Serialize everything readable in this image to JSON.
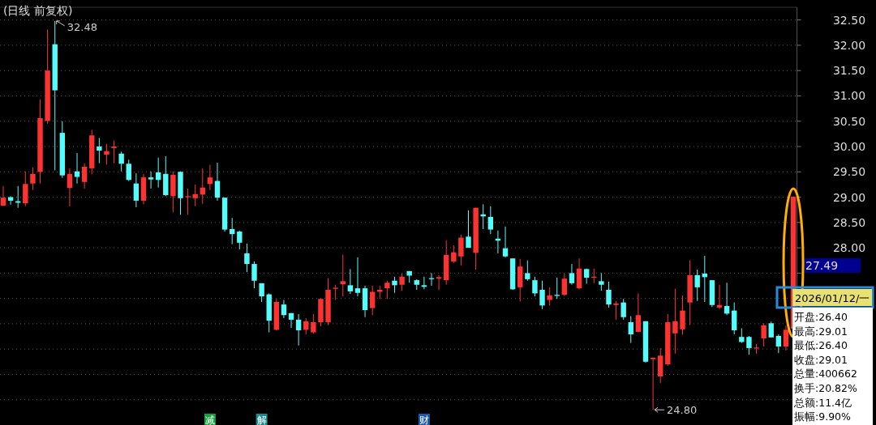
{
  "chart_data": {
    "type": "candlestick",
    "title": "(日线 前复权)",
    "categories": [
      null,
      null,
      null,
      null,
      null,
      null,
      null,
      null,
      null,
      null,
      null,
      null,
      null,
      null,
      null,
      null,
      null,
      null,
      null,
      null,
      null,
      null,
      null,
      null,
      null,
      null,
      null,
      null,
      null,
      null,
      null,
      null,
      null,
      null,
      null,
      null,
      null,
      null,
      null,
      null,
      null,
      null,
      null,
      null,
      null,
      null,
      null,
      null,
      null,
      null,
      null,
      null,
      null,
      null,
      null,
      null,
      null,
      null,
      null,
      null,
      null,
      null,
      null,
      null,
      null,
      null,
      null,
      null,
      null,
      null,
      null,
      null,
      null,
      null,
      null,
      null,
      null,
      null,
      null,
      null,
      null,
      null,
      null,
      null,
      null,
      null,
      null,
      null,
      null,
      null,
      null,
      null,
      null,
      null,
      null,
      null,
      null,
      null,
      null,
      null,
      null,
      null,
      null,
      null,
      null,
      null,
      null,
      null
    ],
    "ohlc": [
      [
        28.83,
        29.22,
        28.83,
        28.99
      ],
      [
        29.0,
        29.02,
        28.85,
        28.93
      ],
      [
        28.92,
        29.22,
        28.79,
        28.89
      ],
      [
        28.88,
        29.51,
        28.82,
        29.26
      ],
      [
        29.27,
        29.59,
        29.14,
        29.46
      ],
      [
        29.5,
        30.93,
        29.27,
        30.56
      ],
      [
        30.51,
        32.31,
        30.45,
        31.5
      ],
      [
        32.02,
        32.48,
        29.53,
        31.11
      ],
      [
        30.27,
        30.5,
        29.38,
        29.43
      ],
      [
        29.18,
        29.57,
        28.82,
        29.46
      ],
      [
        29.51,
        29.87,
        29.27,
        29.4
      ],
      [
        29.3,
        29.67,
        29.17,
        29.6
      ],
      [
        29.57,
        30.33,
        29.45,
        30.22
      ],
      [
        30.0,
        30.17,
        29.67,
        29.92
      ],
      [
        29.84,
        30.05,
        29.64,
        29.91
      ],
      [
        29.97,
        30.12,
        29.67,
        30.0
      ],
      [
        29.86,
        29.9,
        29.51,
        29.66
      ],
      [
        29.66,
        29.74,
        29.32,
        29.34
      ],
      [
        29.27,
        29.47,
        28.8,
        28.93
      ],
      [
        28.93,
        29.46,
        28.86,
        29.39
      ],
      [
        29.39,
        29.51,
        29.17,
        29.35
      ],
      [
        29.49,
        29.78,
        29.19,
        29.34
      ],
      [
        29.46,
        29.81,
        29.02,
        29.04
      ],
      [
        29.02,
        29.51,
        28.7,
        29.44
      ],
      [
        29.5,
        29.51,
        28.65,
        28.98
      ],
      [
        29.0,
        29.17,
        28.65,
        29.02
      ],
      [
        28.98,
        29.25,
        28.82,
        29.06
      ],
      [
        29.05,
        29.57,
        28.87,
        29.19
      ],
      [
        29.26,
        29.64,
        29.14,
        29.39
      ],
      [
        29.32,
        29.68,
        28.93,
        28.99
      ],
      [
        28.99,
        28.99,
        28.32,
        28.36
      ],
      [
        28.37,
        28.59,
        28.07,
        28.27
      ],
      [
        28.32,
        28.34,
        27.97,
        28.1
      ],
      [
        27.89,
        28.08,
        27.52,
        27.68
      ],
      [
        27.68,
        27.73,
        27.2,
        27.35
      ],
      [
        27.3,
        27.3,
        26.93,
        27.04
      ],
      [
        27.08,
        27.1,
        26.33,
        26.56
      ],
      [
        26.38,
        26.99,
        26.37,
        26.93
      ],
      [
        26.88,
        26.97,
        26.61,
        26.67
      ],
      [
        26.71,
        26.71,
        26.42,
        26.58
      ],
      [
        26.58,
        26.69,
        26.07,
        26.37
      ],
      [
        26.38,
        26.61,
        26.29,
        26.55
      ],
      [
        26.33,
        26.69,
        26.3,
        26.53
      ],
      [
        26.53,
        26.99,
        26.45,
        26.99
      ],
      [
        26.53,
        27.4,
        26.47,
        27.17
      ],
      [
        27.19,
        27.27,
        26.97,
        27.21
      ],
      [
        27.28,
        27.86,
        27.04,
        27.34
      ],
      [
        27.26,
        27.58,
        27.09,
        27.14
      ],
      [
        27.2,
        27.81,
        27.04,
        27.11
      ],
      [
        27.2,
        27.25,
        26.63,
        26.77
      ],
      [
        26.81,
        27.25,
        26.67,
        27.13
      ],
      [
        27.13,
        27.25,
        26.99,
        27.17
      ],
      [
        27.2,
        27.35,
        26.99,
        27.31
      ],
      [
        27.35,
        27.43,
        27.11,
        27.26
      ],
      [
        27.27,
        27.49,
        27.15,
        27.43
      ],
      [
        27.54,
        27.54,
        27.31,
        27.45
      ],
      [
        27.36,
        27.38,
        27.17,
        27.27
      ],
      [
        27.26,
        27.43,
        27.18,
        27.23
      ],
      [
        27.4,
        27.5,
        27.25,
        27.38
      ],
      [
        27.39,
        27.46,
        27.17,
        27.42
      ],
      [
        27.36,
        28.15,
        27.27,
        27.86
      ],
      [
        27.73,
        28.05,
        27.7,
        27.91
      ],
      [
        27.83,
        28.26,
        27.65,
        28.2
      ],
      [
        28.22,
        28.74,
        28.0,
        28.0
      ],
      [
        27.9,
        28.79,
        27.57,
        28.79
      ],
      [
        28.66,
        28.86,
        28.37,
        28.62
      ],
      [
        28.61,
        28.82,
        28.27,
        28.36
      ],
      [
        28.18,
        28.34,
        27.89,
        28.14
      ],
      [
        27.99,
        28.42,
        27.81,
        27.83
      ],
      [
        27.79,
        27.79,
        27.17,
        27.18
      ],
      [
        27.22,
        27.78,
        26.94,
        27.63
      ],
      [
        27.5,
        27.75,
        27.35,
        27.38
      ],
      [
        27.36,
        27.43,
        27.04,
        27.1
      ],
      [
        27.17,
        27.35,
        26.79,
        26.86
      ],
      [
        26.97,
        27.22,
        26.86,
        27.06
      ],
      [
        27.07,
        27.41,
        26.99,
        27.05
      ],
      [
        27.07,
        27.49,
        27.05,
        27.39
      ],
      [
        27.5,
        27.68,
        27.27,
        27.3
      ],
      [
        27.2,
        27.79,
        27.18,
        27.59
      ],
      [
        27.58,
        27.59,
        27.29,
        27.41
      ],
      [
        27.41,
        27.59,
        27.3,
        27.43
      ],
      [
        27.34,
        27.5,
        27.15,
        27.27
      ],
      [
        27.17,
        27.33,
        26.82,
        26.88
      ],
      [
        26.87,
        26.95,
        26.58,
        26.9
      ],
      [
        26.92,
        26.99,
        26.58,
        26.63
      ],
      [
        26.53,
        26.65,
        26.12,
        26.29
      ],
      [
        26.34,
        27.1,
        26.33,
        26.67
      ],
      [
        26.55,
        26.55,
        25.73,
        25.75
      ],
      [
        25.8,
        25.83,
        24.8,
        25.83
      ],
      [
        25.46,
        26.02,
        25.33,
        25.87
      ],
      [
        25.7,
        26.69,
        25.67,
        26.53
      ],
      [
        26.31,
        27.19,
        25.91,
        26.55
      ],
      [
        26.39,
        27.06,
        26.28,
        26.76
      ],
      [
        26.92,
        27.75,
        26.47,
        27.46
      ],
      [
        27.46,
        27.57,
        26.95,
        27.22
      ],
      [
        27.49,
        27.84,
        26.93,
        27.42
      ],
      [
        27.36,
        27.36,
        26.83,
        26.87
      ],
      [
        26.82,
        27.27,
        26.79,
        26.87
      ],
      [
        26.85,
        27.31,
        26.67,
        26.7
      ],
      [
        26.76,
        26.92,
        26.29,
        26.37
      ],
      [
        26.24,
        26.41,
        26.12,
        26.14
      ],
      [
        26.24,
        26.26,
        25.89,
        26.02
      ],
      [
        26.02,
        26.1,
        25.91,
        26.03
      ],
      [
        26.21,
        26.51,
        26.05,
        26.47
      ],
      [
        26.51,
        26.54,
        26.23,
        26.23
      ],
      [
        26.26,
        26.29,
        25.92,
        26.05
      ],
      [
        26.05,
        26.46,
        25.97,
        26.38
      ],
      [
        26.4,
        29.01,
        26.4,
        29.01
      ]
    ],
    "colors": [
      "#ff3232",
      "#54fcfc",
      "#54fcfc",
      "#ff3232",
      "#ff3232",
      "#ff3232",
      "#ff3232",
      "#54fcfc",
      "#54fcfc",
      "#ff3232",
      "#54fcfc",
      "#ff3232",
      "#ff3232",
      "#54fcfc",
      "#ff3232",
      "#ff3232",
      "#54fcfc",
      "#54fcfc",
      "#54fcfc",
      "#ff3232",
      "#54fcfc",
      "#54fcfc",
      "#54fcfc",
      "#ff3232",
      "#54fcfc",
      "#ff3232",
      "#ff3232",
      "#ff3232",
      "#ff3232",
      "#54fcfc",
      "#54fcfc",
      "#54fcfc",
      "#54fcfc",
      "#54fcfc",
      "#54fcfc",
      "#54fcfc",
      "#54fcfc",
      "#ff3232",
      "#54fcfc",
      "#54fcfc",
      "#54fcfc",
      "#ff3232",
      "#ff3232",
      "#ff3232",
      "#ff3232",
      "#ff3232",
      "#ff3232",
      "#54fcfc",
      "#54fcfc",
      "#54fcfc",
      "#ff3232",
      "#ff3232",
      "#ff3232",
      "#54fcfc",
      "#ff3232",
      "#54fcfc",
      "#54fcfc",
      "#54fcfc",
      "#54fcfc",
      "#ff3232",
      "#ff3232",
      "#ff3232",
      "#ff3232",
      "#54fcfc",
      "#ff3232",
      "#54fcfc",
      "#54fcfc",
      "#54fcfc",
      "#54fcfc",
      "#54fcfc",
      "#ff3232",
      "#54fcfc",
      "#54fcfc",
      "#54fcfc",
      "#ff3232",
      "#54fcfc",
      "#ff3232",
      "#54fcfc",
      "#ff3232",
      "#54fcfc",
      "#ff3232",
      "#54fcfc",
      "#54fcfc",
      "#ff3232",
      "#54fcfc",
      "#54fcfc",
      "#ff3232",
      "#54fcfc",
      "#ff3232",
      "#ff3232",
      "#ff3232",
      "#ff3232",
      "#ff3232",
      "#ff3232",
      "#54fcfc",
      "#54fcfc",
      "#54fcfc",
      "#ff3232",
      "#54fcfc",
      "#54fcfc",
      "#54fcfc",
      "#54fcfc",
      "#ff3232",
      "#ff3232",
      "#54fcfc",
      "#54fcfc",
      "#ff3232",
      "#ff3232"
    ],
    "ylim": [
      24.5,
      32.75
    ],
    "yticks": [
      {
        "value": 32.5,
        "label": "32.50"
      },
      {
        "value": 32.0,
        "label": "32.00"
      },
      {
        "value": 31.5,
        "label": "31.50"
      },
      {
        "value": 31.0,
        "label": "31.00"
      },
      {
        "value": 30.5,
        "label": "30.50"
      },
      {
        "value": 30.0,
        "label": "30.00"
      },
      {
        "value": 29.5,
        "label": "29.50"
      },
      {
        "value": 29.0,
        "label": "29.00"
      },
      {
        "value": 28.5,
        "label": "28.50"
      },
      {
        "value": 28.0,
        "label": "28.00"
      },
      {
        "value": 27.5,
        "label": null
      },
      {
        "value": 27.0,
        "label": null
      },
      {
        "value": 26.5,
        "label": null
      },
      {
        "value": 26.0,
        "label": null
      },
      {
        "value": 25.5,
        "label": null
      },
      {
        "value": 25.0,
        "label": null
      }
    ],
    "grid": "y",
    "annotations": [
      "32.48",
      "24.80",
      "27.49",
      "2026/01/12/一",
      "开盘:26.40",
      "最高:29.01",
      "最低:26.40",
      "收盘:29.01",
      "总量:400662",
      "换手:20.82%",
      "总额:11.4亿",
      "振幅:9.90%",
      "减",
      "解",
      "财"
    ]
  }
}
